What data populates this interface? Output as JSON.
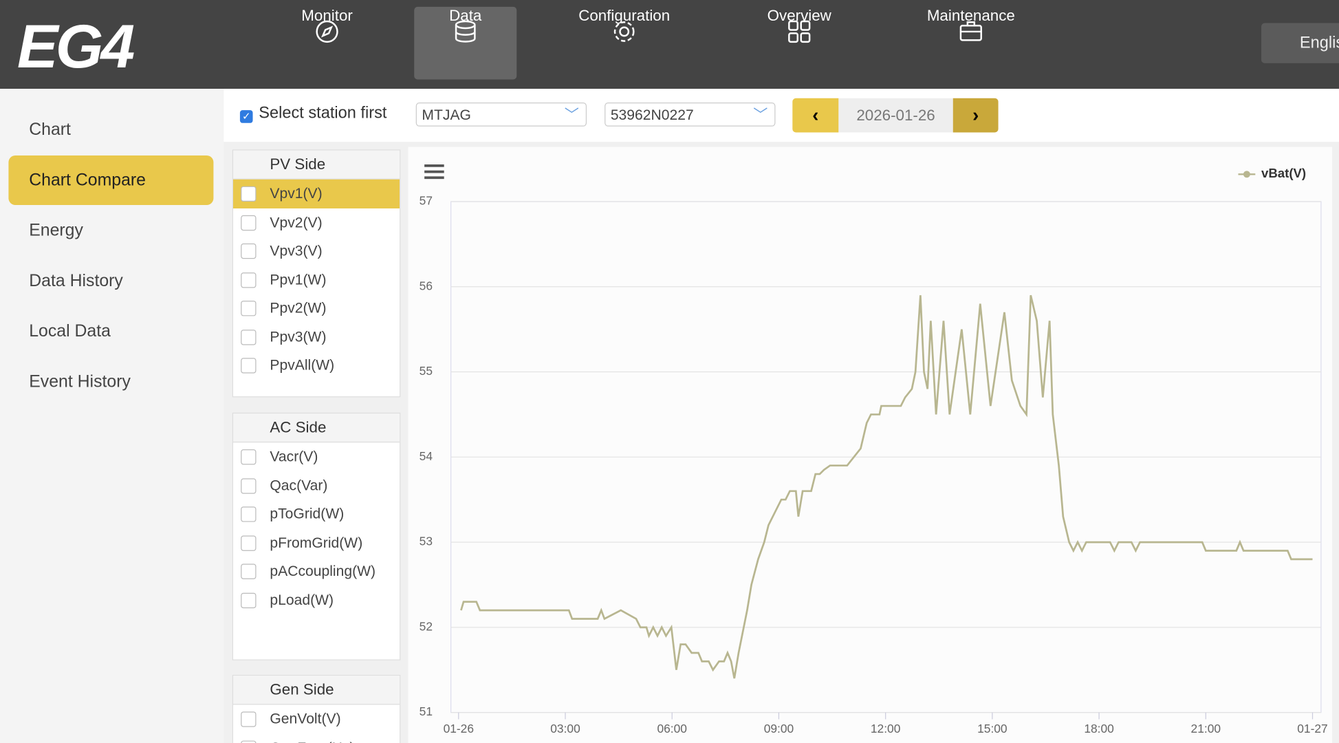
{
  "header": {
    "logo": "EG4",
    "nav": [
      "Monitor",
      "Data",
      "Configuration",
      "Overview",
      "Maintenance"
    ],
    "language": "English"
  },
  "sidebar": [
    "Chart",
    "Chart Compare",
    "Energy",
    "Data History",
    "Local Data",
    "Event History"
  ],
  "controls": {
    "station_label": "Select station first",
    "station": "MTJAG",
    "serial": "53962N0227",
    "date": "2026-01-26"
  },
  "panels": [
    {
      "title": "PV Side",
      "items": [
        "Vpv1(V)",
        "Vpv2(V)",
        "Vpv3(V)",
        "Ppv1(W)",
        "Ppv2(W)",
        "Ppv3(W)",
        "PpvAll(W)"
      ]
    },
    {
      "title": "AC Side",
      "items": [
        "Vacr(V)",
        "Qac(Var)",
        "pToGrid(W)",
        "pFromGrid(W)",
        "pACcoupling(W)",
        "pLoad(W)"
      ]
    },
    {
      "title": "Gen Side",
      "items": [
        "GenVolt(V)",
        "GenFreq(Hz)"
      ]
    }
  ],
  "chart_data": {
    "type": "line",
    "x": [
      0.07,
      0.14,
      0.5,
      0.6,
      3.1,
      3.19,
      3.91,
      4.01,
      4.1,
      4.56,
      4.99,
      5.11,
      5.28,
      5.35,
      5.47,
      5.59,
      5.71,
      5.83,
      5.98,
      6.12,
      6.24,
      6.38,
      6.55,
      6.74,
      6.84,
      7.03,
      7.15,
      7.32,
      7.46,
      7.56,
      7.66,
      7.75,
      7.87,
      8.11,
      8.23,
      8.42,
      8.59,
      8.71,
      8.83,
      9.07,
      9.19,
      9.31,
      9.48,
      9.55,
      9.67,
      9.91,
      10.03,
      10.15,
      10.27,
      10.44,
      10.92,
      11.11,
      11.3,
      11.47,
      11.59,
      11.83,
      11.88,
      12.43,
      12.55,
      12.74,
      12.84,
      12.98,
      13.08,
      13.18,
      13.27,
      13.42,
      13.63,
      13.8,
      14.14,
      14.38,
      14.66,
      14.95,
      15.34,
      15.55,
      15.79,
      15.96,
      16.08,
      16.25,
      16.42,
      16.61,
      16.7,
      16.87,
      16.99,
      17.16,
      17.28,
      17.4,
      17.52,
      17.64,
      18.31,
      18.43,
      18.55,
      18.91,
      19.03,
      19.15,
      20.9,
      21.0,
      21.86,
      21.96,
      22.06,
      23.3,
      23.4,
      24
    ],
    "series": [
      {
        "name": "vBat(V)",
        "color": "#b8b690",
        "values": [
          52.2,
          52.3,
          52.3,
          52.2,
          52.2,
          52.1,
          52.1,
          52.2,
          52.1,
          52.2,
          52.1,
          52.0,
          52.0,
          51.9,
          52.0,
          51.9,
          52.0,
          51.9,
          52.0,
          51.5,
          51.8,
          51.8,
          51.7,
          51.7,
          51.6,
          51.6,
          51.5,
          51.6,
          51.6,
          51.7,
          51.6,
          51.4,
          51.7,
          52.2,
          52.5,
          52.8,
          53.0,
          53.2,
          53.3,
          53.5,
          53.5,
          53.6,
          53.6,
          53.3,
          53.6,
          53.6,
          53.8,
          53.8,
          53.85,
          53.9,
          53.9,
          54.0,
          54.1,
          54.4,
          54.5,
          54.5,
          54.6,
          54.6,
          54.7,
          54.8,
          55.0,
          55.9,
          55.0,
          54.8,
          55.6,
          54.5,
          55.6,
          54.5,
          55.5,
          54.5,
          55.8,
          54.6,
          55.7,
          54.9,
          54.6,
          54.5,
          55.9,
          55.6,
          54.7,
          55.6,
          54.5,
          53.9,
          53.3,
          53.0,
          52.9,
          53.0,
          52.9,
          53.0,
          53.0,
          52.9,
          53.0,
          53.0,
          52.9,
          53.0,
          53.0,
          52.9,
          52.9,
          53.0,
          52.9,
          52.9,
          52.8,
          52.8
        ]
      }
    ],
    "xlim": [
      0,
      24
    ],
    "xticks": [
      {
        "value": 0,
        "label": "01-26"
      },
      {
        "value": 3,
        "label": "03:00"
      },
      {
        "value": 6,
        "label": "06:00"
      },
      {
        "value": 9,
        "label": "09:00"
      },
      {
        "value": 12,
        "label": "12:00"
      },
      {
        "value": 15,
        "label": "15:00"
      },
      {
        "value": 18,
        "label": "18:00"
      },
      {
        "value": 21,
        "label": "21:00"
      },
      {
        "value": 24,
        "label": "01-27"
      }
    ],
    "ylim": [
      51,
      57
    ],
    "yticks": [
      51,
      52,
      53,
      54,
      55,
      56,
      57
    ],
    "grid": true,
    "legend": "top-right"
  }
}
